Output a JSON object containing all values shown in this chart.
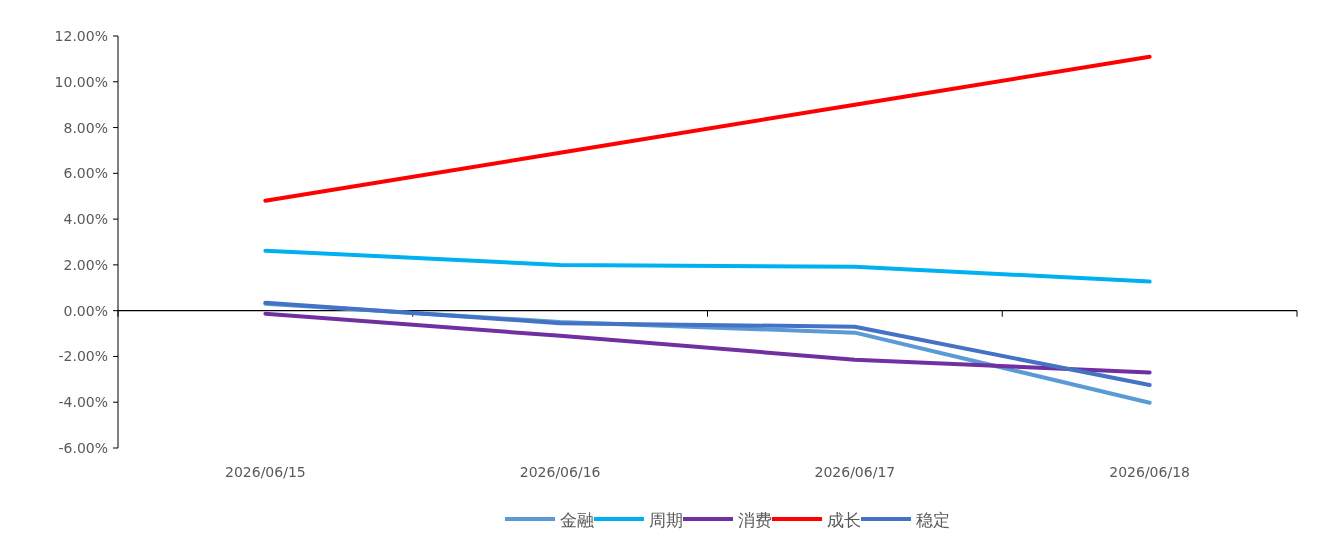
{
  "chart_data": {
    "type": "line",
    "categories": [
      "2026/06/15",
      "2026/06/16",
      "2026/06/17",
      "2026/06/18"
    ],
    "series": [
      {
        "name": "金融",
        "color": "#5b9bd5",
        "values": [
          0.3,
          -0.5,
          -0.96,
          -4.02
        ]
      },
      {
        "name": "周期",
        "color": "#00b0f0",
        "values": [
          2.62,
          2.0,
          1.92,
          1.27
        ]
      },
      {
        "name": "消费",
        "color": "#7030a0",
        "values": [
          -0.13,
          -1.1,
          -2.14,
          -2.7
        ]
      },
      {
        "name": "成长",
        "color": "#ff0000",
        "values": [
          4.8,
          6.9,
          9.0,
          11.09
        ]
      },
      {
        "name": "稳定",
        "color": "#4472c4",
        "values": [
          0.35,
          -0.55,
          -0.7,
          -3.25
        ]
      }
    ],
    "ylim": [
      -6,
      12
    ],
    "yticks": [
      {
        "value": -6,
        "label": "-6.00%"
      },
      {
        "value": -4,
        "label": "-4.00%"
      },
      {
        "value": -2,
        "label": "-2.00%"
      },
      {
        "value": 0,
        "label": "0.00%"
      },
      {
        "value": 2,
        "label": "2.00%"
      },
      {
        "value": 4,
        "label": "4.00%"
      },
      {
        "value": 6,
        "label": "6.00%"
      },
      {
        "value": 8,
        "label": "8.00%"
      },
      {
        "value": 10,
        "label": "10.00%"
      },
      {
        "value": 12,
        "label": "12.00%"
      }
    ],
    "legend": "bottom",
    "marker": "none",
    "line_style": "solid"
  }
}
